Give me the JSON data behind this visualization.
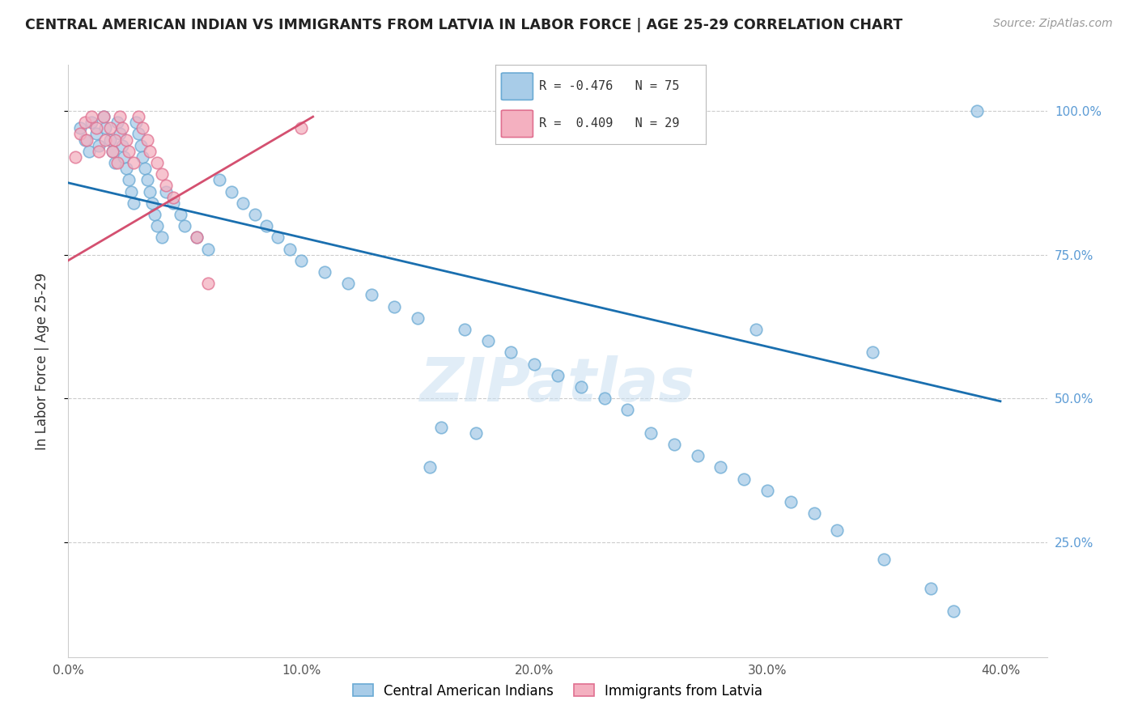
{
  "title": "CENTRAL AMERICAN INDIAN VS IMMIGRANTS FROM LATVIA IN LABOR FORCE | AGE 25-29 CORRELATION CHART",
  "source": "Source: ZipAtlas.com",
  "ylabel": "In Labor Force | Age 25-29",
  "x_ticks": [
    "0.0%",
    "10.0%",
    "20.0%",
    "30.0%",
    "40.0%"
  ],
  "x_tick_vals": [
    0.0,
    0.1,
    0.2,
    0.3,
    0.4
  ],
  "y_ticks_right": [
    "100.0%",
    "75.0%",
    "50.0%",
    "25.0%"
  ],
  "y_tick_vals": [
    1.0,
    0.75,
    0.5,
    0.25
  ],
  "xlim": [
    0.0,
    0.42
  ],
  "ylim": [
    0.05,
    1.08
  ],
  "blue_scatter_x": [
    0.005,
    0.007,
    0.009,
    0.01,
    0.012,
    0.013,
    0.015,
    0.016,
    0.018,
    0.019,
    0.02,
    0.021,
    0.022,
    0.023,
    0.024,
    0.025,
    0.026,
    0.027,
    0.028,
    0.029,
    0.03,
    0.031,
    0.032,
    0.033,
    0.034,
    0.035,
    0.036,
    0.037,
    0.038,
    0.04,
    0.042,
    0.045,
    0.048,
    0.05,
    0.055,
    0.06,
    0.065,
    0.07,
    0.075,
    0.08,
    0.085,
    0.09,
    0.095,
    0.1,
    0.11,
    0.12,
    0.13,
    0.14,
    0.15,
    0.16,
    0.17,
    0.18,
    0.19,
    0.2,
    0.21,
    0.22,
    0.23,
    0.24,
    0.25,
    0.26,
    0.27,
    0.28,
    0.29,
    0.3,
    0.31,
    0.32,
    0.33,
    0.35,
    0.37,
    0.38,
    0.39,
    0.295,
    0.175,
    0.155,
    0.345
  ],
  "blue_scatter_y": [
    0.97,
    0.95,
    0.93,
    0.98,
    0.96,
    0.94,
    0.99,
    0.97,
    0.95,
    0.93,
    0.91,
    0.98,
    0.96,
    0.94,
    0.92,
    0.9,
    0.88,
    0.86,
    0.84,
    0.98,
    0.96,
    0.94,
    0.92,
    0.9,
    0.88,
    0.86,
    0.84,
    0.82,
    0.8,
    0.78,
    0.86,
    0.84,
    0.82,
    0.8,
    0.78,
    0.76,
    0.88,
    0.86,
    0.84,
    0.82,
    0.8,
    0.78,
    0.76,
    0.74,
    0.72,
    0.7,
    0.68,
    0.66,
    0.64,
    0.45,
    0.62,
    0.6,
    0.58,
    0.56,
    0.54,
    0.52,
    0.5,
    0.48,
    0.44,
    0.42,
    0.4,
    0.38,
    0.36,
    0.34,
    0.32,
    0.3,
    0.27,
    0.22,
    0.17,
    0.13,
    1.0,
    0.62,
    0.44,
    0.38,
    0.58
  ],
  "pink_scatter_x": [
    0.003,
    0.005,
    0.007,
    0.008,
    0.01,
    0.012,
    0.013,
    0.015,
    0.016,
    0.018,
    0.019,
    0.02,
    0.021,
    0.022,
    0.023,
    0.025,
    0.026,
    0.028,
    0.03,
    0.032,
    0.034,
    0.035,
    0.038,
    0.04,
    0.042,
    0.045,
    0.055,
    0.06,
    0.1
  ],
  "pink_scatter_y": [
    0.92,
    0.96,
    0.98,
    0.95,
    0.99,
    0.97,
    0.93,
    0.99,
    0.95,
    0.97,
    0.93,
    0.95,
    0.91,
    0.99,
    0.97,
    0.95,
    0.93,
    0.91,
    0.99,
    0.97,
    0.95,
    0.93,
    0.91,
    0.89,
    0.87,
    0.85,
    0.78,
    0.7,
    0.97
  ],
  "blue_line": {
    "x0": 0.0,
    "y0": 0.875,
    "x1": 0.4,
    "y1": 0.495
  },
  "pink_line": {
    "x0": 0.0,
    "y0": 0.74,
    "x1": 0.105,
    "y1": 0.99
  },
  "blue_scatter_color_face": "#a8cce8",
  "blue_scatter_color_edge": "#6aaad4",
  "pink_scatter_color_face": "#f4b0c0",
  "pink_scatter_color_edge": "#e07090",
  "blue_line_color": "#1a6faf",
  "pink_line_color": "#d45070",
  "watermark": "ZIPatlas",
  "background_color": "#ffffff",
  "grid_color": "#cccccc",
  "right_tick_color": "#5b9bd5"
}
